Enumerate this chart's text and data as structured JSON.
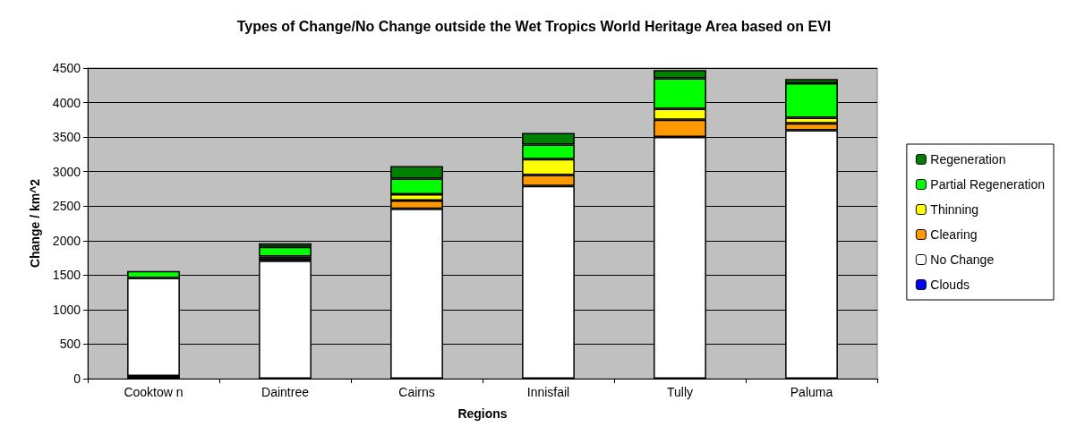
{
  "chart_data": {
    "type": "bar",
    "stacked": true,
    "title": "Types of Change/No Change outside the Wet Tropics World Heritage Area based on EVI",
    "xlabel": "Regions",
    "ylabel": "Change / km^2",
    "categories": [
      "Cooktow n",
      "Daintree",
      "Cairns",
      "Innisfail",
      "Tully",
      "Paluma"
    ],
    "series": [
      {
        "name": "Clouds",
        "color": "#0000ff",
        "values": [
          40,
          null,
          0,
          0,
          0,
          0
        ]
      },
      {
        "name": "No Change",
        "color": "#ffffff",
        "values": [
          1420,
          1710,
          2460,
          2790,
          3500,
          3600
        ]
      },
      {
        "name": "Clearing",
        "color": "#ff9900",
        "values": [
          0,
          30,
          120,
          160,
          250,
          100
        ]
      },
      {
        "name": "Thinning",
        "color": "#ffff00",
        "values": [
          0,
          30,
          90,
          230,
          160,
          80
        ]
      },
      {
        "name": "Partial Regeneration",
        "color": "#00ff00",
        "values": [
          100,
          140,
          230,
          210,
          440,
          500
        ]
      },
      {
        "name": "Regeneration",
        "color": "#008000",
        "values": [
          0,
          50,
          180,
          170,
          120,
          60
        ]
      }
    ],
    "ylim": [
      0,
      4500
    ],
    "yticks": [
      0,
      500,
      1000,
      1500,
      2000,
      2500,
      3000,
      3500,
      4000,
      4500
    ],
    "grid": "y",
    "legend": "right"
  }
}
